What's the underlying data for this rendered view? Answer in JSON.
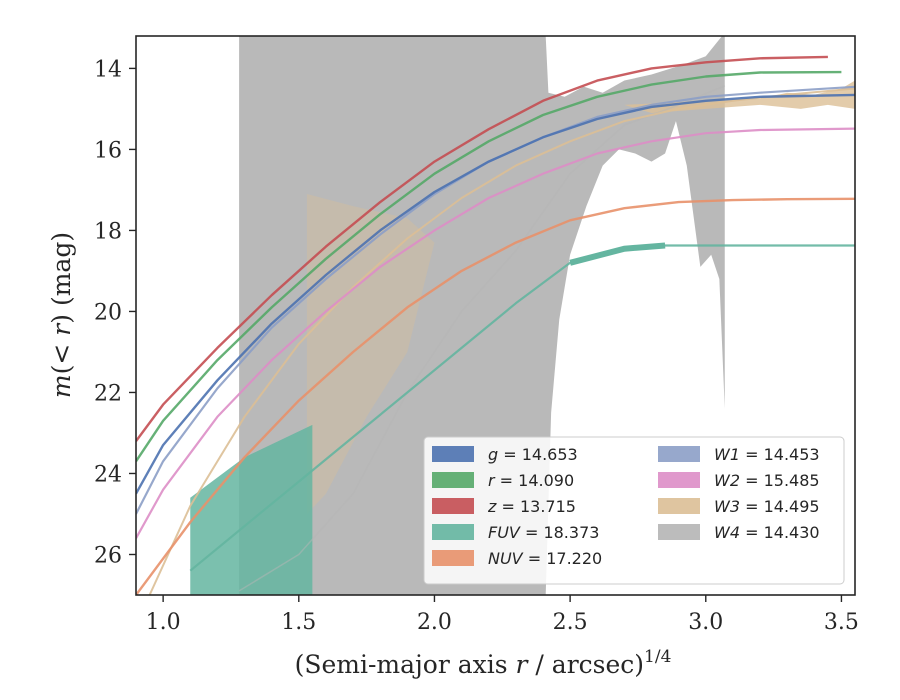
{
  "chart_data": {
    "type": "line",
    "xlabel": "(Semi-major axis r / arcsec)^1/4",
    "ylabel": "m(< r) (mag)",
    "xlim": [
      0.9,
      3.55
    ],
    "ylim": [
      27.0,
      13.2
    ],
    "y_inverted": true,
    "grid": false,
    "legend_position": "lower-right",
    "x_ticks": [
      "1.0",
      "1.5",
      "2.0",
      "2.5",
      "3.0",
      "3.5"
    ],
    "y_ticks": [
      "14",
      "16",
      "18",
      "20",
      "22",
      "24",
      "26"
    ],
    "colors": {
      "g": "#4c72b0",
      "r": "#55a868",
      "z": "#c44e52",
      "FUV": "#64b5a0",
      "NUV": "#e8916a",
      "W1": "#8c9ec6",
      "W2": "#dd8ec6",
      "W3": "#dcbf96",
      "W4": "#b5b5b5"
    },
    "legend": [
      {
        "band": "g",
        "label": "g = 14.653"
      },
      {
        "band": "r",
        "label": "r = 14.090"
      },
      {
        "band": "z",
        "label": "z = 13.715"
      },
      {
        "band": "FUV",
        "label": "FUV = 18.373"
      },
      {
        "band": "NUV",
        "label": "NUV = 17.220"
      },
      {
        "band": "W1",
        "label": "W1 = 14.453"
      },
      {
        "band": "W2",
        "label": "W2 = 15.485"
      },
      {
        "band": "W3",
        "label": "W3 = 14.495"
      },
      {
        "band": "W4",
        "label": "W4 = 14.430"
      }
    ],
    "series": [
      {
        "band": "z",
        "total": 13.715,
        "x": [
          0.9,
          1.0,
          1.2,
          1.4,
          1.6,
          1.8,
          2.0,
          2.2,
          2.4,
          2.6,
          2.8,
          3.0,
          3.2,
          3.45
        ],
        "y": [
          23.2,
          22.3,
          20.9,
          19.6,
          18.4,
          17.3,
          16.3,
          15.5,
          14.8,
          14.3,
          14.0,
          13.85,
          13.75,
          13.715
        ]
      },
      {
        "band": "r",
        "total": 14.09,
        "x": [
          0.9,
          1.0,
          1.2,
          1.4,
          1.6,
          1.8,
          2.0,
          2.2,
          2.4,
          2.6,
          2.8,
          3.0,
          3.2,
          3.5
        ],
        "y": [
          23.7,
          22.7,
          21.2,
          19.9,
          18.7,
          17.6,
          16.6,
          15.8,
          15.15,
          14.7,
          14.4,
          14.2,
          14.1,
          14.09
        ]
      },
      {
        "band": "g",
        "total": 14.653,
        "x": [
          0.9,
          1.0,
          1.2,
          1.4,
          1.6,
          1.8,
          2.0,
          2.2,
          2.4,
          2.6,
          2.8,
          3.0,
          3.2,
          3.55
        ],
        "y": [
          24.5,
          23.3,
          21.7,
          20.3,
          19.1,
          18.0,
          17.05,
          16.3,
          15.7,
          15.25,
          14.95,
          14.8,
          14.7,
          14.653
        ]
      },
      {
        "band": "FUV",
        "total": 18.373,
        "x": [
          1.1,
          1.3,
          1.5,
          1.7,
          1.9,
          2.1,
          2.3,
          2.5,
          2.7,
          2.85,
          3.55
        ],
        "y": [
          26.4,
          25.3,
          24.2,
          23.1,
          22.0,
          20.9,
          19.8,
          18.8,
          18.45,
          18.373,
          18.373
        ]
      },
      {
        "band": "NUV",
        "total": 17.22,
        "x": [
          0.9,
          1.1,
          1.3,
          1.5,
          1.7,
          1.9,
          2.1,
          2.3,
          2.5,
          2.7,
          2.9,
          3.1,
          3.3,
          3.55
        ],
        "y": [
          27.0,
          25.2,
          23.6,
          22.2,
          21.0,
          19.9,
          19.0,
          18.3,
          17.75,
          17.45,
          17.3,
          17.25,
          17.23,
          17.22
        ]
      },
      {
        "band": "W1",
        "total": 14.453,
        "x": [
          0.9,
          1.0,
          1.2,
          1.4,
          1.6,
          1.8,
          2.0,
          2.2,
          2.4,
          2.6,
          2.8,
          3.0,
          3.2,
          3.55
        ],
        "y": [
          25.0,
          23.7,
          21.9,
          20.4,
          19.2,
          18.1,
          17.1,
          16.3,
          15.7,
          15.2,
          14.9,
          14.7,
          14.6,
          14.453
        ]
      },
      {
        "band": "W2",
        "total": 15.485,
        "x": [
          0.9,
          1.0,
          1.2,
          1.4,
          1.6,
          1.8,
          2.0,
          2.2,
          2.4,
          2.6,
          2.8,
          3.0,
          3.2,
          3.55
        ],
        "y": [
          25.6,
          24.4,
          22.6,
          21.2,
          20.0,
          18.9,
          18.0,
          17.2,
          16.6,
          16.1,
          15.8,
          15.6,
          15.52,
          15.485
        ]
      },
      {
        "band": "W3",
        "total": 14.495,
        "x": [
          0.95,
          1.1,
          1.3,
          1.5,
          1.7,
          1.9,
          2.1,
          2.3,
          2.5,
          2.7,
          2.9,
          3.1,
          3.3,
          3.55
        ],
        "y": [
          27.0,
          24.8,
          22.6,
          20.8,
          19.4,
          18.2,
          17.2,
          16.4,
          15.8,
          15.3,
          15.0,
          14.8,
          14.65,
          14.495
        ]
      },
      {
        "band": "W4",
        "total": 14.43,
        "x": [
          1.28,
          1.5,
          1.7,
          1.9,
          2.1,
          2.3,
          2.5,
          2.7,
          2.9,
          3.07
        ],
        "y": [
          26.9,
          26.0,
          24.5,
          22.0,
          20.0,
          18.5,
          16.6,
          15.4,
          14.9,
          14.43
        ]
      }
    ]
  }
}
